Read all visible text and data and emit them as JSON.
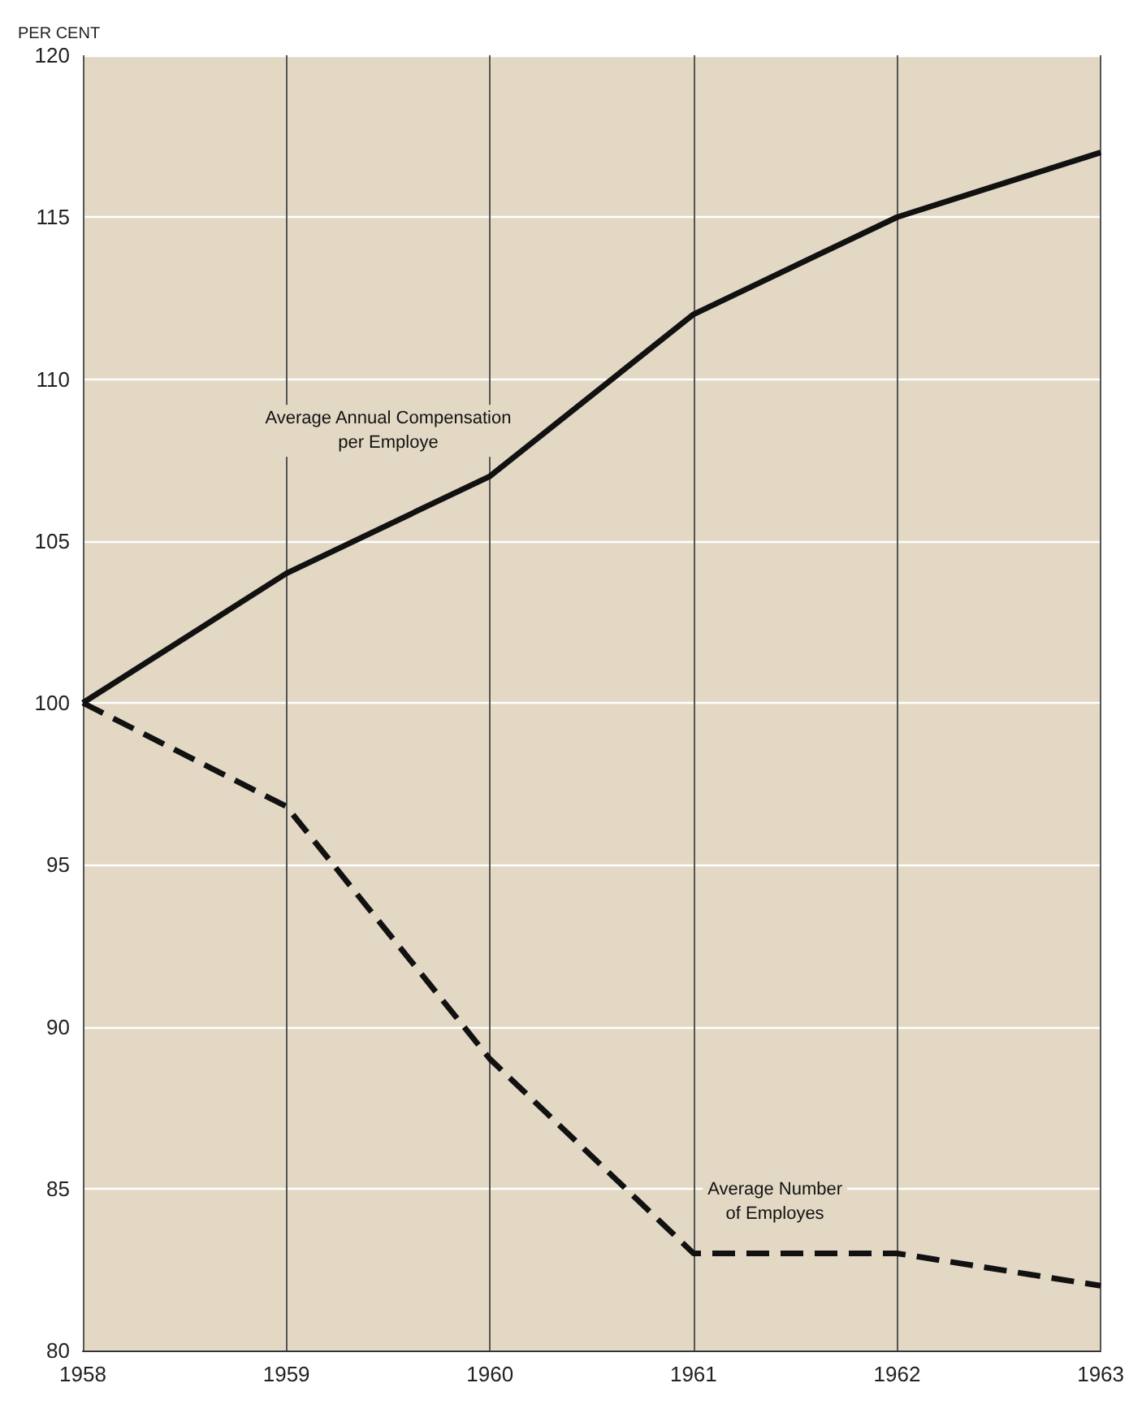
{
  "chart_data": {
    "type": "line",
    "ylabel": "PER CENT",
    "x": [
      1958,
      1959,
      1960,
      1961,
      1962,
      1963
    ],
    "series": [
      {
        "name": "Average Annual Compensation per Employe",
        "color": "#111111",
        "line_style": "solid",
        "values": [
          100,
          104,
          107,
          112,
          115,
          117
        ]
      },
      {
        "name": "Average Number of Employes",
        "color": "#111111",
        "line_style": "dashed",
        "values": [
          100,
          96.8,
          89,
          83,
          83,
          82
        ]
      }
    ],
    "xlim": [
      1958,
      1963
    ],
    "xticks": [
      1958,
      1959,
      1960,
      1961,
      1962,
      1963
    ],
    "ylim": [
      80,
      120
    ],
    "yticks": [
      80,
      85,
      90,
      95,
      100,
      105,
      110,
      115,
      120
    ],
    "grid": true,
    "marker": "none",
    "legend": false
  }
}
